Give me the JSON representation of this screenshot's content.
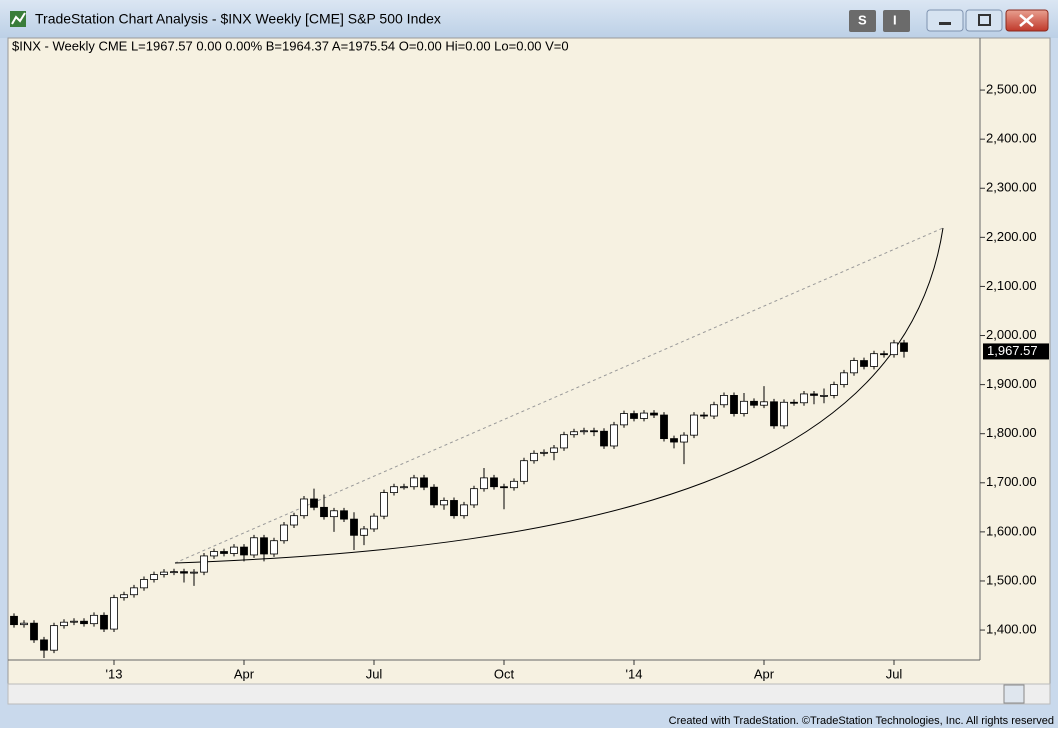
{
  "window_title": "TradeStation Chart Analysis - $INX Weekly [CME] S&P 500 Index",
  "buttons": {
    "studies": "S",
    "indicators": "I"
  },
  "footer": "Created with TradeStation. ©TradeStation Technologies, Inc. All rights reserved",
  "chart_data": {
    "type": "candlestick",
    "title": "$INX - Weekly  CME  L=1967.57  0.00  0.00%  B=1964.37  A=1975.54  O=0.00  Hi=0.00  Lo=0.00  V=0",
    "categories": [
      null,
      null,
      null,
      null,
      null,
      null,
      null,
      null,
      null,
      null,
      "'13",
      null,
      null,
      null,
      null,
      null,
      null,
      null,
      null,
      null,
      null,
      null,
      null,
      "Apr",
      null,
      null,
      null,
      null,
      null,
      null,
      null,
      null,
      null,
      null,
      null,
      null,
      "Jul",
      null,
      null,
      null,
      null,
      null,
      null,
      null,
      null,
      null,
      null,
      null,
      null,
      "Oct",
      null,
      null,
      null,
      null,
      null,
      null,
      null,
      null,
      null,
      null,
      null,
      null,
      "'14",
      null,
      null,
      null,
      null,
      null,
      null,
      null,
      null,
      null,
      null,
      null,
      null,
      "Apr",
      null,
      null,
      null,
      null,
      null,
      null,
      null,
      null,
      null,
      null,
      null,
      null,
      "Jul",
      null
    ],
    "open": [
      1428,
      1411,
      1414,
      1380,
      1359,
      1409,
      1416,
      1418,
      1413,
      1430,
      1402,
      1466,
      1472,
      1486,
      1503,
      1513,
      1518,
      1519,
      1516,
      1518,
      1551,
      1560,
      1556,
      1569,
      1553,
      1588,
      1555,
      1582,
      1614,
      1633,
      1667,
      1650,
      1631,
      1643,
      1626,
      1593,
      1606,
      1632,
      1680,
      1692,
      1692,
      1710,
      1691,
      1655,
      1664,
      1633,
      1655,
      1688,
      1710,
      1692,
      1690,
      1703,
      1745,
      1760,
      1762,
      1771,
      1798,
      1804,
      1806,
      1805,
      1775,
      1818,
      1841,
      1831,
      1842,
      1838,
      1790,
      1783,
      1797,
      1838,
      1836,
      1859,
      1878,
      1841,
      1866,
      1858,
      1865,
      1816,
      1864,
      1863,
      1881,
      1878,
      1878,
      1900,
      1924,
      1949,
      1937,
      1963,
      1961,
      1985
    ],
    "high": [
      1434,
      1420,
      1420,
      1386,
      1415,
      1422,
      1424,
      1424,
      1436,
      1436,
      1472,
      1478,
      1492,
      1509,
      1519,
      1524,
      1525,
      1525,
      1524,
      1557,
      1566,
      1566,
      1575,
      1575,
      1594,
      1594,
      1588,
      1620,
      1639,
      1673,
      1688,
      1676,
      1649,
      1649,
      1640,
      1612,
      1638,
      1686,
      1698,
      1698,
      1716,
      1716,
      1697,
      1670,
      1670,
      1661,
      1694,
      1730,
      1716,
      1698,
      1709,
      1751,
      1766,
      1768,
      1777,
      1804,
      1810,
      1812,
      1812,
      1811,
      1824,
      1847,
      1847,
      1848,
      1848,
      1844,
      1796,
      1803,
      1844,
      1844,
      1865,
      1884,
      1884,
      1883,
      1872,
      1897,
      1871,
      1870,
      1870,
      1887,
      1887,
      1892,
      1906,
      1930,
      1955,
      1955,
      1969,
      1969,
      1991,
      1991
    ],
    "low": [
      1405,
      1405,
      1374,
      1343,
      1353,
      1403,
      1410,
      1407,
      1407,
      1396,
      1396,
      1460,
      1466,
      1480,
      1497,
      1507,
      1512,
      1497,
      1490,
      1512,
      1545,
      1550,
      1550,
      1540,
      1547,
      1540,
      1549,
      1576,
      1608,
      1627,
      1644,
      1625,
      1600,
      1620,
      1563,
      1573,
      1600,
      1626,
      1674,
      1686,
      1686,
      1685,
      1649,
      1645,
      1627,
      1627,
      1649,
      1682,
      1686,
      1646,
      1684,
      1697,
      1739,
      1754,
      1746,
      1765,
      1792,
      1798,
      1795,
      1769,
      1769,
      1812,
      1825,
      1825,
      1832,
      1784,
      1770,
      1738,
      1791,
      1830,
      1830,
      1853,
      1835,
      1835,
      1852,
      1852,
      1810,
      1810,
      1857,
      1857,
      1860,
      1862,
      1872,
      1894,
      1918,
      1931,
      1931,
      1955,
      1955,
      1955
    ],
    "close": [
      1411,
      1414,
      1380,
      1359,
      1409,
      1416,
      1418,
      1413,
      1430,
      1402,
      1466,
      1472,
      1486,
      1503,
      1513,
      1518,
      1519,
      1516,
      1518,
      1551,
      1560,
      1556,
      1569,
      1553,
      1588,
      1555,
      1582,
      1614,
      1633,
      1667,
      1650,
      1631,
      1643,
      1626,
      1593,
      1606,
      1632,
      1680,
      1692,
      1692,
      1710,
      1691,
      1655,
      1664,
      1633,
      1655,
      1688,
      1710,
      1692,
      1690,
      1703,
      1745,
      1760,
      1762,
      1771,
      1798,
      1804,
      1806,
      1805,
      1775,
      1818,
      1841,
      1831,
      1842,
      1838,
      1790,
      1783,
      1797,
      1838,
      1836,
      1859,
      1878,
      1841,
      1866,
      1858,
      1865,
      1816,
      1864,
      1863,
      1881,
      1878,
      1878,
      1900,
      1924,
      1949,
      1937,
      1963,
      1961,
      1985,
      1967.57
    ],
    "last_price": 1967.57,
    "last_price_label": "1,967.57",
    "ylim": [
      1339,
      2602
    ],
    "yticks": [
      {
        "value": 1400,
        "label": "1,400.00"
      },
      {
        "value": 1500,
        "label": "1,500.00"
      },
      {
        "value": 1600,
        "label": "1,600.00"
      },
      {
        "value": 1700,
        "label": "1,700.00"
      },
      {
        "value": 1800,
        "label": "1,800.00"
      },
      {
        "value": 1900,
        "label": "1,900.00"
      },
      {
        "value": 2000,
        "label": "2,000.00"
      },
      {
        "value": 2100,
        "label": "2,100.00"
      },
      {
        "value": 2200,
        "label": "2,200.00"
      },
      {
        "value": 2300,
        "label": "2,300.00"
      },
      {
        "value": 2400,
        "label": "2,400.00"
      },
      {
        "value": 2500,
        "label": "2,500.00"
      }
    ],
    "up_color": "#ffffff",
    "down_color": "#000000"
  }
}
